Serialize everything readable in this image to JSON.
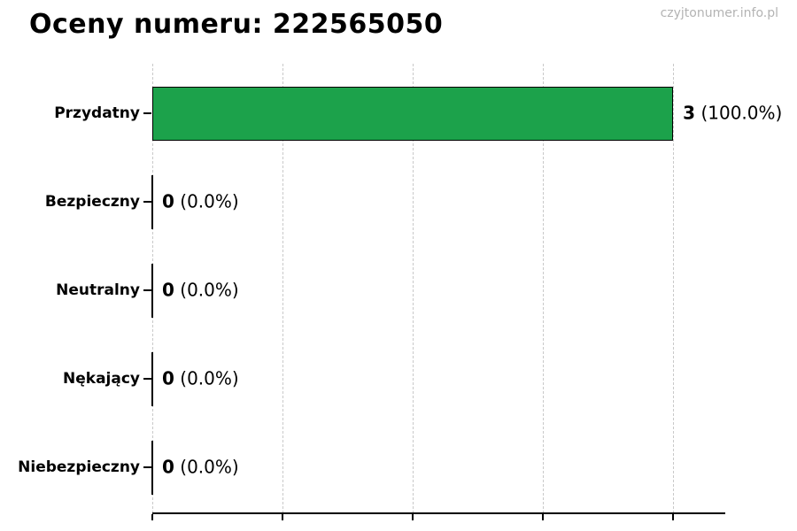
{
  "chart_data": {
    "type": "bar",
    "orientation": "horizontal",
    "title": "Oceny numeru: 222565050",
    "watermark": "czyjtonumer.info.pl",
    "categories": [
      "Przydatny",
      "Bezpieczny",
      "Neutralny",
      "Nękający",
      "Niebezpieczny"
    ],
    "values": [
      3,
      0,
      0,
      0,
      0
    ],
    "value_labels": [
      {
        "count": "3",
        "pct": "(100.0%)"
      },
      {
        "count": "0",
        "pct": "(0.0%)"
      },
      {
        "count": "0",
        "pct": "(0.0%)"
      },
      {
        "count": "0",
        "pct": "(0.0%)"
      },
      {
        "count": "0",
        "pct": "(0.0%)"
      }
    ],
    "xlabel": "",
    "ylabel": "",
    "xlim": [
      0,
      3.3
    ],
    "x_gridlines": [
      0,
      0.75,
      1.5,
      2.25,
      3.0
    ],
    "grid": true,
    "legend": false,
    "colors": {
      "bar_fill": "#1ca24b",
      "bar_edge": "#000000",
      "grid_line": "#c9c9c9",
      "axis_line": "#000000",
      "text": "#000000",
      "watermark": "#b3b3b3"
    }
  }
}
